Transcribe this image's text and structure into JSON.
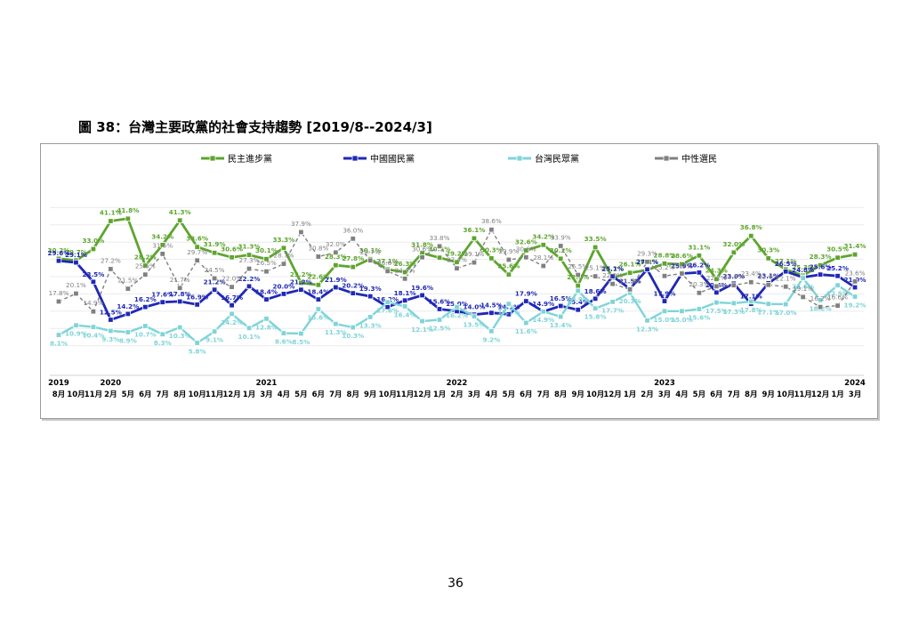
{
  "page": {
    "title": "圖 38：台灣主要政黨的社會支持趨勢  [2019/8--2024/3]",
    "page_number": "36"
  },
  "chart_data": {
    "type": "line",
    "title": "",
    "xlabel": "",
    "ylabel": "",
    "ylim": [
      0,
      50
    ],
    "grid": "horizontal",
    "legend_position": "top",
    "year_labels": [
      {
        "label": "2019",
        "index": 0
      },
      {
        "label": "2020",
        "index": 3
      },
      {
        "label": "2021",
        "index": 12
      },
      {
        "label": "2022",
        "index": 23
      },
      {
        "label": "2023",
        "index": 35
      },
      {
        "label": "2024",
        "index": 46
      }
    ],
    "categories": [
      "8月",
      "10月",
      "11月",
      "2月",
      "5月",
      "6月",
      "7月",
      "8月",
      "10月",
      "11月",
      "12月",
      "1月",
      "3月",
      "4月",
      "5月",
      "6月",
      "7月",
      "8月",
      "9月",
      "10月",
      "11月",
      "12月",
      "1月",
      "2月",
      "3月",
      "4月",
      "5月",
      "6月",
      "7月",
      "8月",
      "9月",
      "10月",
      "12月",
      "1月",
      "2月",
      "3月",
      "4月",
      "5月",
      "6月",
      "7月",
      "8月",
      "9月",
      "10月",
      "11月",
      "12月",
      "1月",
      "3月"
    ],
    "series": [
      {
        "name": "民主進步黨",
        "color": "#5ea52f",
        "marker": "square-green",
        "values": [
          30.2,
          29.7,
          33.0,
          41.1,
          41.8,
          28.2,
          34.2,
          41.3,
          33.6,
          31.9,
          30.6,
          31.3,
          30.1,
          33.3,
          23.2,
          22.6,
          28.3,
          27.8,
          30.1,
          27.1,
          26.3,
          31.8,
          30.5,
          29.2,
          36.1,
          30.3,
          25.6,
          32.6,
          34.2,
          30.2,
          22.4,
          33.5,
          24.7,
          26.1,
          26.9,
          28.8,
          28.6,
          31.1,
          24.3,
          32.0,
          36.8,
          30.3,
          27.1,
          25.3,
          28.3,
          30.5,
          31.4
        ]
      },
      {
        "name": "中國國民黨",
        "color": "#1f28b4",
        "marker": "square-blue",
        "values": [
          29.6,
          29.1,
          23.5,
          12.5,
          14.2,
          16.2,
          17.6,
          17.8,
          16.9,
          21.2,
          16.7,
          22.2,
          18.4,
          20.0,
          21.2,
          18.4,
          21.9,
          20.2,
          19.3,
          16.2,
          18.1,
          19.6,
          15.6,
          15.0,
          14.0,
          14.5,
          14.1,
          17.9,
          14.9,
          16.5,
          15.4,
          18.6,
          25.1,
          21.5,
          27.1,
          17.9,
          25.9,
          26.2,
          20.4,
          23.0,
          17.1,
          23.1,
          26.5,
          24.8,
          25.6,
          25.2,
          21.9
        ]
      },
      {
        "name": "台灣民眾黨",
        "color": "#7fd4d8",
        "marker": "square-cyan",
        "values": [
          8.1,
          10.9,
          10.4,
          9.3,
          8.9,
          10.7,
          8.3,
          10.3,
          5.8,
          9.1,
          14.2,
          10.1,
          12.8,
          8.6,
          8.5,
          15.6,
          11.3,
          10.3,
          13.3,
          17.6,
          16.4,
          12.1,
          12.5,
          16.2,
          13.5,
          9.2,
          17.1,
          11.6,
          14.9,
          13.4,
          20.9,
          15.8,
          17.7,
          20.3,
          12.3,
          15.0,
          15.0,
          15.6,
          17.5,
          17.3,
          17.8,
          17.1,
          17.0,
          24.6,
          18.2,
          22.5,
          19.2
        ]
      },
      {
        "name": "中性選民",
        "color": "#808080",
        "marker": "square-gray",
        "values": [
          17.8,
          20.1,
          14.9,
          27.2,
          21.5,
          25.6,
          31.6,
          21.7,
          29.7,
          24.5,
          22.0,
          27.3,
          26.5,
          28.7,
          37.9,
          30.8,
          32.0,
          36.0,
          29.7,
          26.6,
          24.4,
          30.6,
          33.8,
          27.4,
          29.1,
          38.6,
          29.9,
          30.6,
          28.1,
          33.9,
          25.5,
          25.1,
          22.9,
          21.3,
          29.3,
          25.2,
          25.9,
          20.3,
          22.2,
          22.5,
          23.4,
          22.6,
          22.1,
          19.1,
          16.2,
          16.6,
          23.6
        ]
      }
    ],
    "data_labels": [
      [
        "30.2%",
        "29.7%",
        "33.0%",
        "41.1%",
        "41.8%",
        "28.2%",
        "34.2%",
        "41.3%",
        "33.6%",
        "31.9%",
        "30.6%",
        "31.3%",
        "30.1%",
        "33.3%",
        "23.2%",
        "22.6%",
        "28.3%",
        "27.8%",
        "30.1%",
        "27.1%",
        "26.3%",
        "31.8%",
        "30.5%",
        "29.2%",
        "36.1%",
        "30.3%",
        "25.6%",
        "32.6%",
        "34.2%",
        "30.2%",
        "22.4%",
        "33.5%",
        "24.7%",
        "26.1%",
        "26.9%",
        "28.8%",
        "28.6%",
        "31.1%",
        "24.3%",
        "32.0%",
        "36.8%",
        "30.3%",
        "27.1%",
        "25.3%",
        "28.3%",
        "30.5%",
        "31.4%"
      ],
      [
        "29.6%",
        "29.1%",
        "23.5%",
        "12.5%",
        "14.2%",
        "16.2%",
        "17.6%",
        "17.8%",
        "16.9%",
        "21.2%",
        "16.7%",
        "22.2%",
        "18.4%",
        "20.0%",
        "21.2%",
        "18.4%",
        "21.9%",
        "20.2%",
        "19.3%",
        "16.2%",
        "18.1%",
        "19.6%",
        "15.6%",
        "15.0%",
        "14.0%",
        "14.5%",
        "14.1%",
        "17.9%",
        "14.9%",
        "16.5%",
        "15.4%",
        "18.6%",
        "25.1%",
        "21.5%",
        "27.1%",
        "17.9%",
        "25.9%",
        "26.2%",
        "20.4%",
        "23.0%",
        "17.1%",
        "23.1%",
        "26.5%",
        "24.8%",
        "25.6%",
        "25.2%",
        "21.9%"
      ],
      [
        "8.1%",
        "10.9%",
        "10.4%",
        "9.3%",
        "8.9%",
        "10.7%",
        "8.3%",
        "10.3%",
        "5.8%",
        "9.1%",
        "14.2%",
        "10.1%",
        "12.8%",
        "8.6%",
        "8.5%",
        "15.6%",
        "11.3%",
        "10.3%",
        "13.3%",
        "17.6%",
        "16.4%",
        "12.1%",
        "12.5%",
        "16.2%",
        "13.5%",
        "9.2%",
        "17.1%",
        "11.6%",
        "14.9%",
        "13.4%",
        "20.9%",
        "15.8%",
        "17.7%",
        "20.3%",
        "12.3%",
        "15.0%",
        "15.0%",
        "15.6%",
        "17.5%",
        "17.3%",
        "17.8%",
        "17.1%",
        "17.0%",
        "24.6%",
        "18.2%",
        "22.5%",
        "19.2%"
      ],
      [
        "17.8%",
        "20.1%",
        "14.9%",
        "27.2%",
        "21.5%",
        "25.6%",
        "31.6%",
        "21.7%",
        "29.7%",
        "24.5%",
        "22.0%",
        "27.3%",
        "26.5%",
        "28.7%",
        "37.9%",
        "30.8%",
        "32.0%",
        "36.0%",
        "29.7%",
        "26.6%",
        "24.4%",
        "30.6%",
        "33.8%",
        "27.4%",
        "29.1%",
        "38.6%",
        "29.9%",
        "30.6%",
        "28.1%",
        "33.9%",
        "25.5%",
        "25.1%",
        "22.9%",
        "21.3%",
        "29.3%",
        "25.2%",
        "25.9%",
        "20.3%",
        "22.2%",
        "22.5%",
        "23.4%",
        "22.6%",
        "22.1%",
        "19.1%",
        "16.2%",
        "16.6%",
        "23.6%"
      ]
    ]
  }
}
